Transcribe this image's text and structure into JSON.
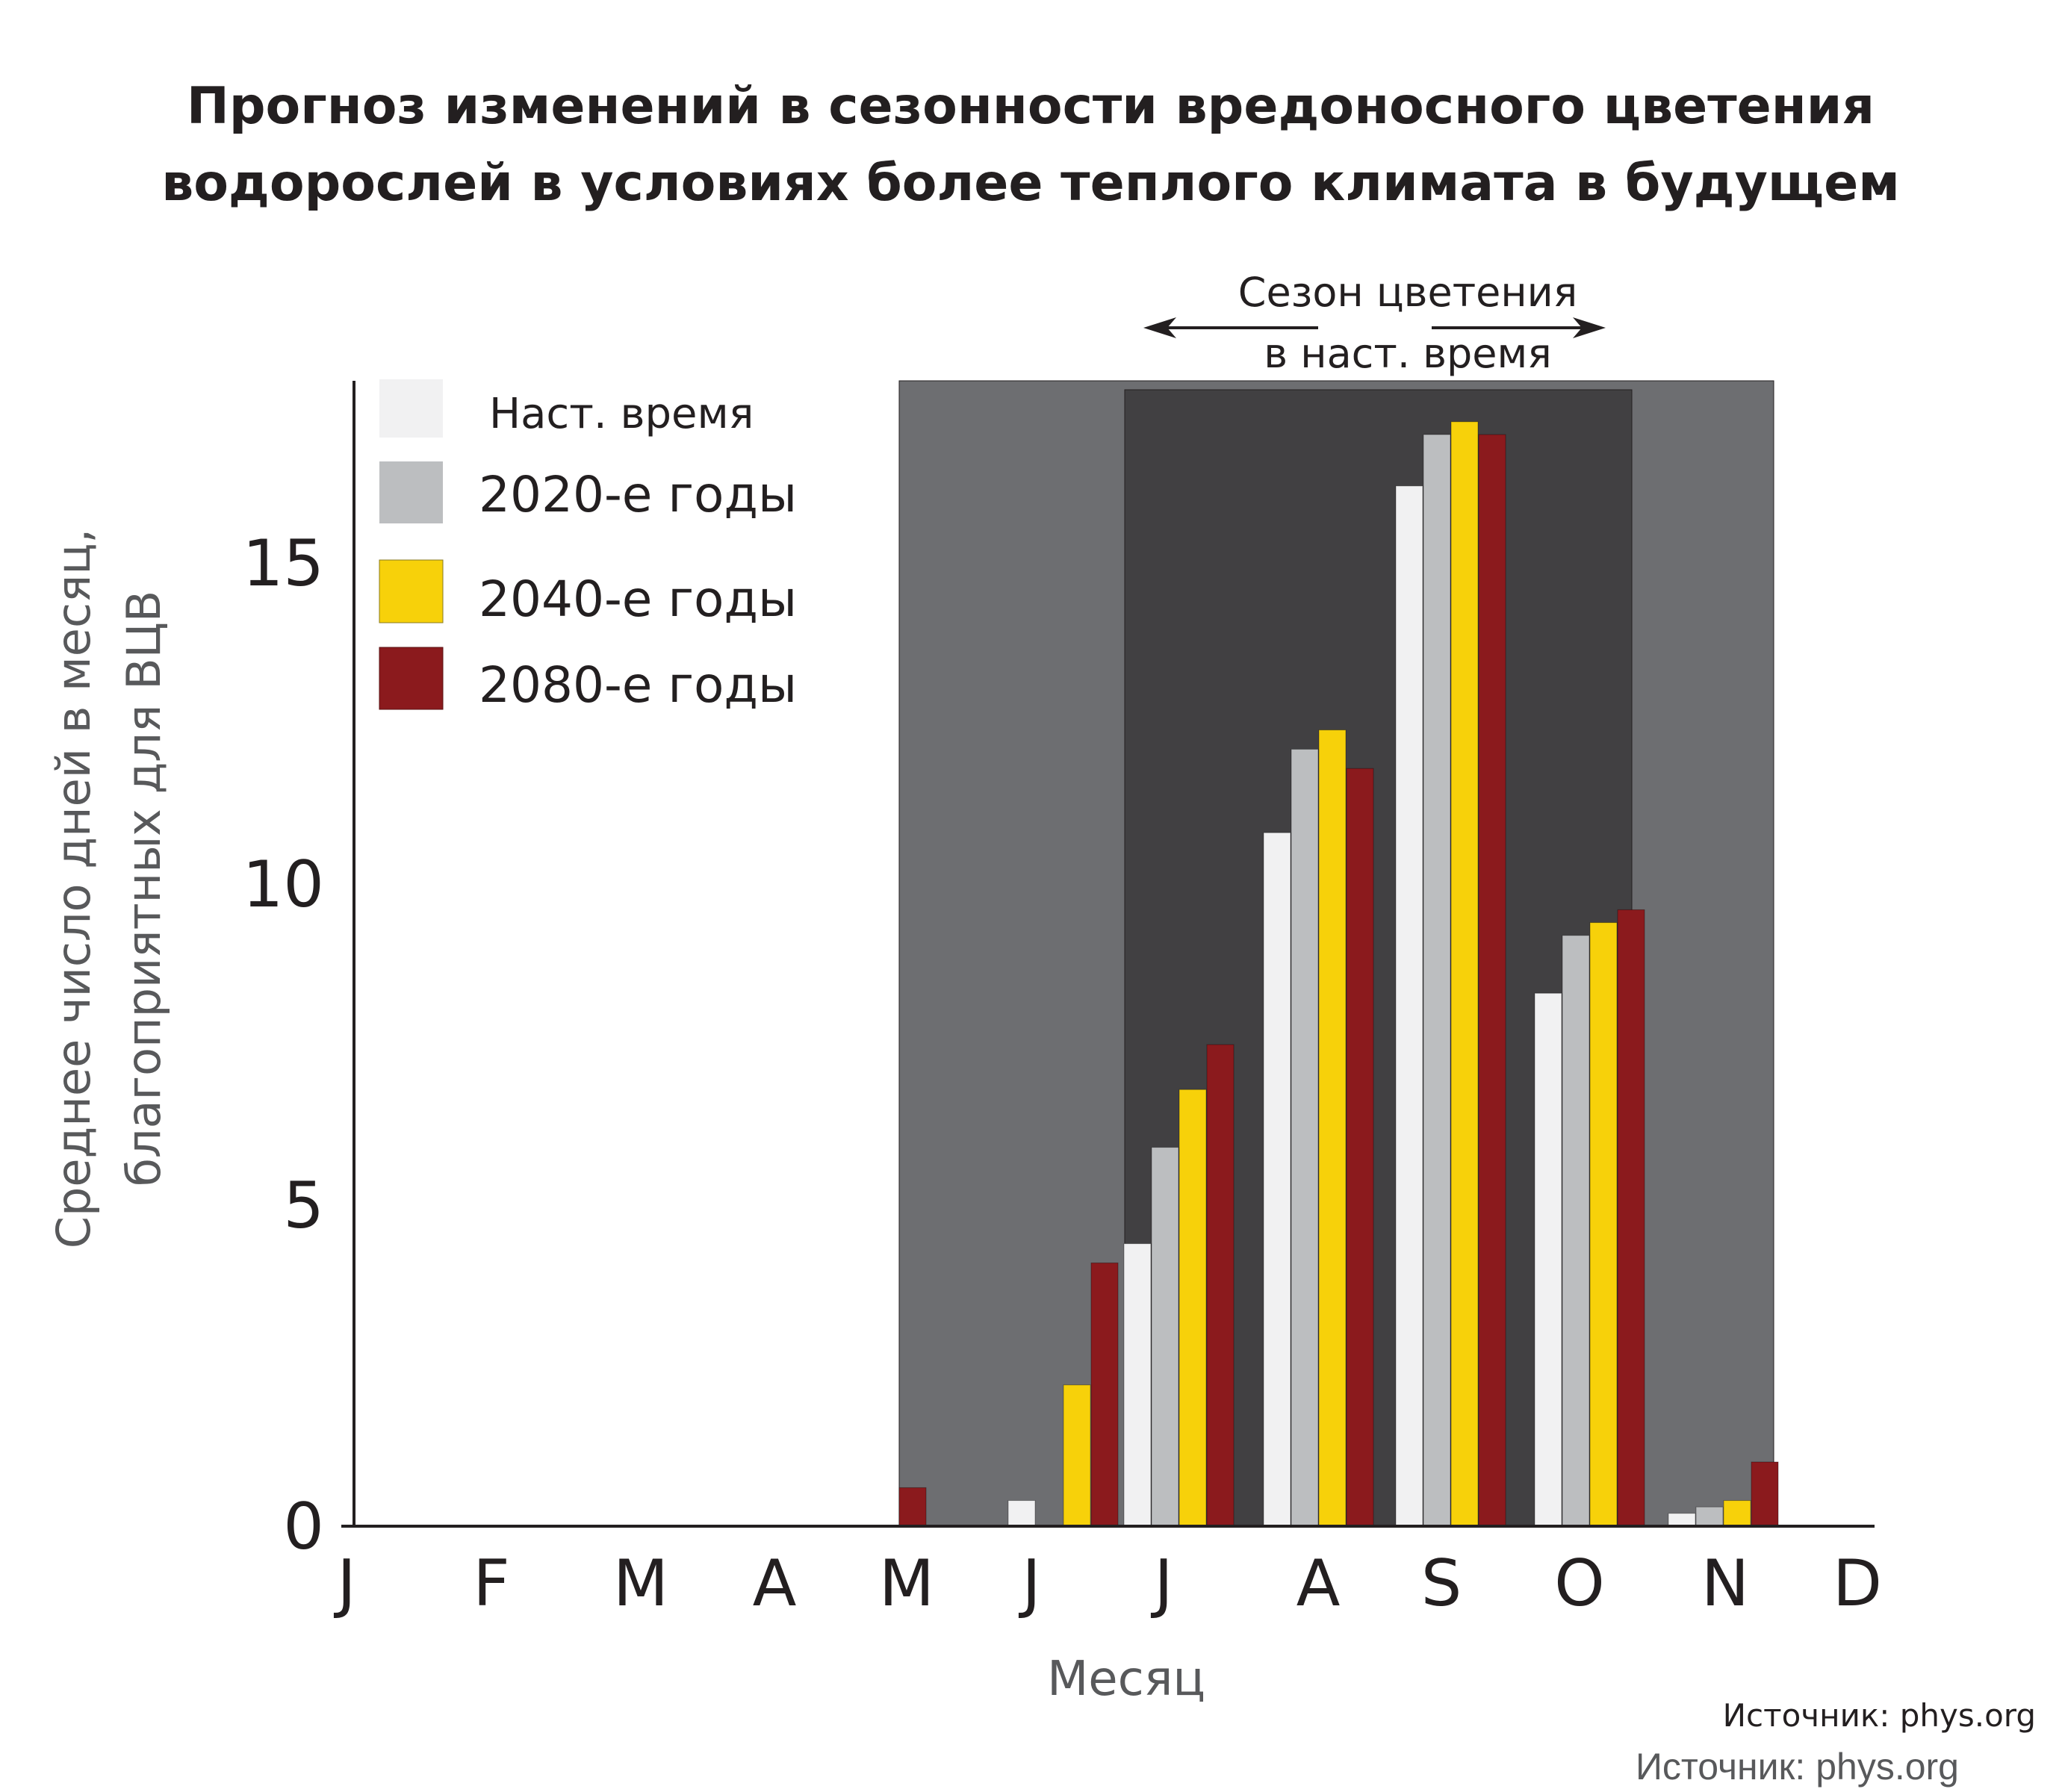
{
  "chart_data": {
    "type": "bar",
    "title": [
      "Прогноз изменений в сезонности вредоносного цветения",
      "водорослей в условиях более теплого климата в будущем"
    ],
    "xlabel": "Месяц",
    "ylabel": [
      "Среднее число дней в месяц,",
      "благоприятных для ВЦВ"
    ],
    "categories": [
      "J",
      "F",
      "M",
      "A",
      "M",
      "J",
      "J",
      "A",
      "S",
      "O",
      "N",
      "D"
    ],
    "yticks": [
      "0",
      "5",
      "10",
      "15"
    ],
    "ylim": [
      0,
      17.8
    ],
    "grid": false,
    "legend_position": "top-left",
    "series": [
      {
        "name": "Наст. время",
        "color": "#f1f1f2",
        "values": [
          0,
          0,
          0,
          0,
          0,
          0.4,
          4.4,
          10.8,
          16.2,
          8.3,
          0.2,
          0
        ]
      },
      {
        "name": "2020-е годы",
        "color": "#bcbec0",
        "values": [
          0,
          0,
          0,
          0,
          0,
          0,
          5.9,
          12.1,
          17.0,
          9.2,
          0.3,
          0
        ]
      },
      {
        "name": "2040-е годы",
        "color": "#f7d10a",
        "values": [
          0,
          0,
          0,
          0,
          0,
          2.2,
          6.8,
          12.4,
          17.2,
          9.4,
          0.4,
          0
        ]
      },
      {
        "name": "2080-е годы",
        "color": "#8b1a1d",
        "values": [
          0,
          0,
          0,
          0,
          0.6,
          4.1,
          7.5,
          11.8,
          17.0,
          9.6,
          1.0,
          0
        ]
      }
    ],
    "shaded_regions": [
      {
        "from": "M",
        "to": "N",
        "color": "#6d6e71"
      },
      {
        "from": "J",
        "to": "O",
        "color": "#414042"
      }
    ],
    "annotation": [
      "Сезон цветения",
      "в наст. время"
    ]
  },
  "sources": [
    "Источник: phys.org",
    "Источник: phys.org"
  ]
}
